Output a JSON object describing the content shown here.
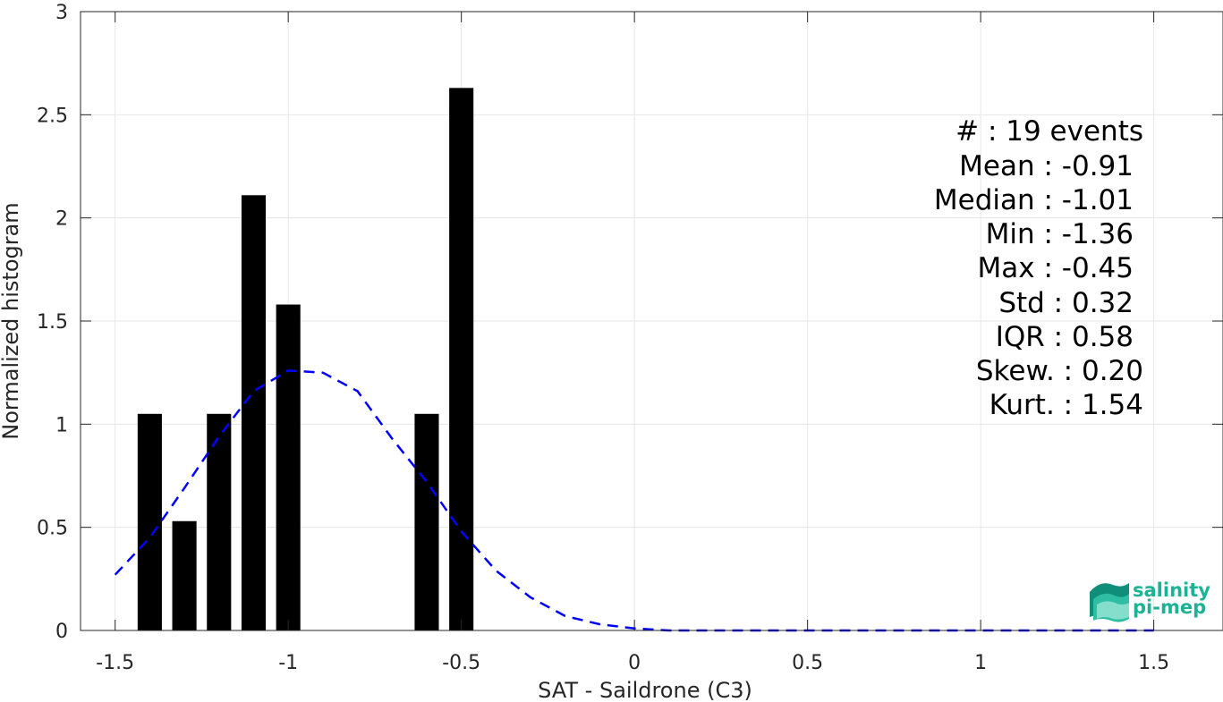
{
  "chart_data": {
    "type": "bar",
    "xlabel": "SAT - Saildrone (C3)",
    "ylabel": "Normalized histogram",
    "xlim": [
      -1.6,
      1.7
    ],
    "ylim": [
      0,
      3
    ],
    "grid": true,
    "x_ticks": [
      -1.5,
      -1,
      -0.5,
      0,
      0.5,
      1,
      1.5
    ],
    "x_tick_labels": [
      "-1.5",
      "-1",
      "-0.5",
      "0",
      "0.5",
      "1",
      "1.5"
    ],
    "y_ticks": [
      0,
      0.5,
      1,
      1.5,
      2,
      2.5,
      3
    ],
    "y_tick_labels": [
      "0",
      "0.5",
      "1",
      "1.5",
      "2",
      "2.5",
      "3"
    ],
    "bins": {
      "centers": [
        -1.4,
        -1.3,
        -1.2,
        -1.1,
        -1.0,
        -0.6,
        -0.5
      ],
      "width": 0.07,
      "values": [
        1.05,
        0.53,
        1.05,
        2.11,
        1.58,
        1.05,
        2.63
      ],
      "color": "#000000"
    },
    "fit_curve": {
      "style": "dashed",
      "color": "#0000ff",
      "x": [
        -1.5,
        -1.4,
        -1.3,
        -1.2,
        -1.1,
        -1.0,
        -0.9,
        -0.8,
        -0.7,
        -0.6,
        -0.5,
        -0.4,
        -0.3,
        -0.2,
        -0.1,
        0.0,
        0.1,
        0.2,
        0.3,
        0.4,
        0.5,
        0.6,
        0.7,
        0.8,
        0.9,
        1.0,
        1.1,
        1.2,
        1.3,
        1.4,
        1.5
      ],
      "y": [
        0.27,
        0.45,
        0.69,
        0.94,
        1.16,
        1.26,
        1.25,
        1.16,
        0.93,
        0.72,
        0.48,
        0.29,
        0.16,
        0.07,
        0.03,
        0.01,
        0.0,
        0.0,
        0.0,
        0.0,
        0.0,
        0.0,
        0.0,
        0.0,
        0.0,
        0.0,
        0.0,
        0.0,
        0.0,
        0.0,
        0.0
      ]
    },
    "annotations": [
      "#  : 19 events",
      "Mean : -0.91",
      "Median : -1.01",
      "Min : -1.36",
      "Max : -0.45",
      "Std : 0.32",
      "IQR : 0.58",
      "Skew. : 0.20",
      "Kurt. : 1.54"
    ]
  },
  "logo": {
    "line1": "salinity",
    "line2": "pi-mep",
    "color": "#1ab394"
  }
}
